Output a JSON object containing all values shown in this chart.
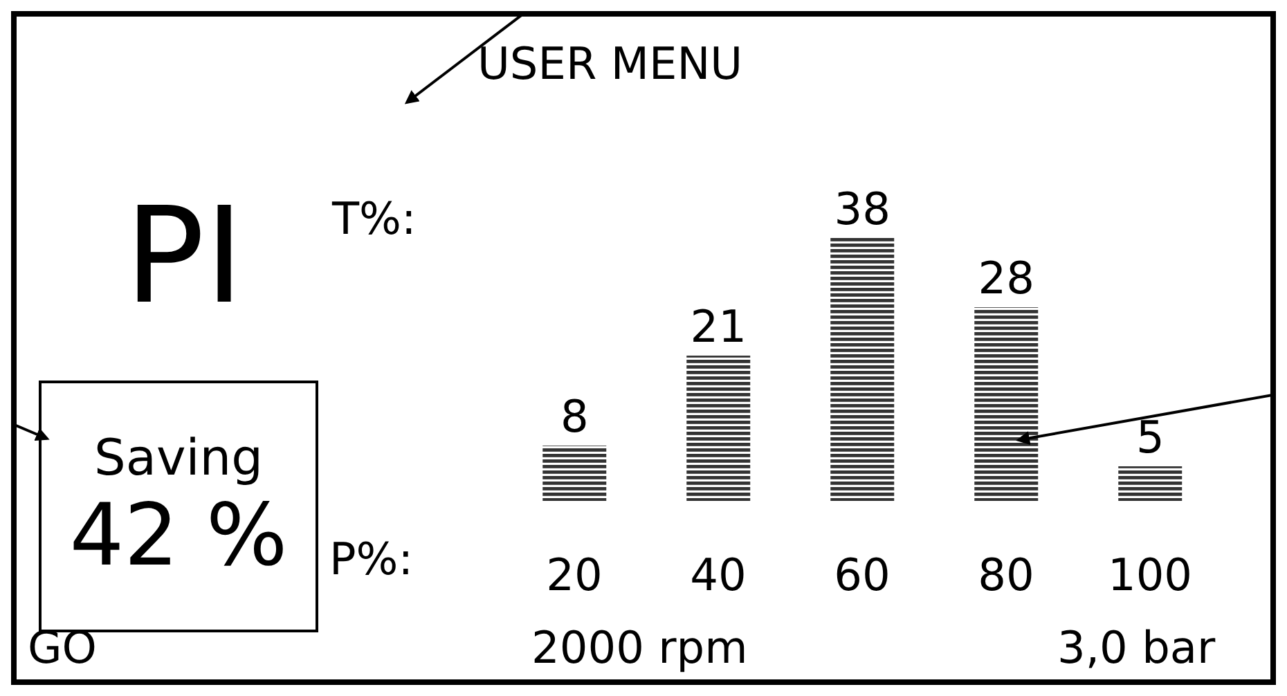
{
  "chart_data": {
    "type": "bar",
    "title": "USER MENU",
    "xlabel": "P%:",
    "ylabel": "T%:",
    "categories": [
      "20",
      "40",
      "60",
      "80",
      "100"
    ],
    "values": [
      8,
      21,
      38,
      28,
      5
    ],
    "color": "#333333",
    "data_labels": true,
    "annotations": [
      "PI",
      "Saving",
      "42 %",
      "GO",
      "2000 rpm",
      "3,0 bar"
    ]
  }
}
